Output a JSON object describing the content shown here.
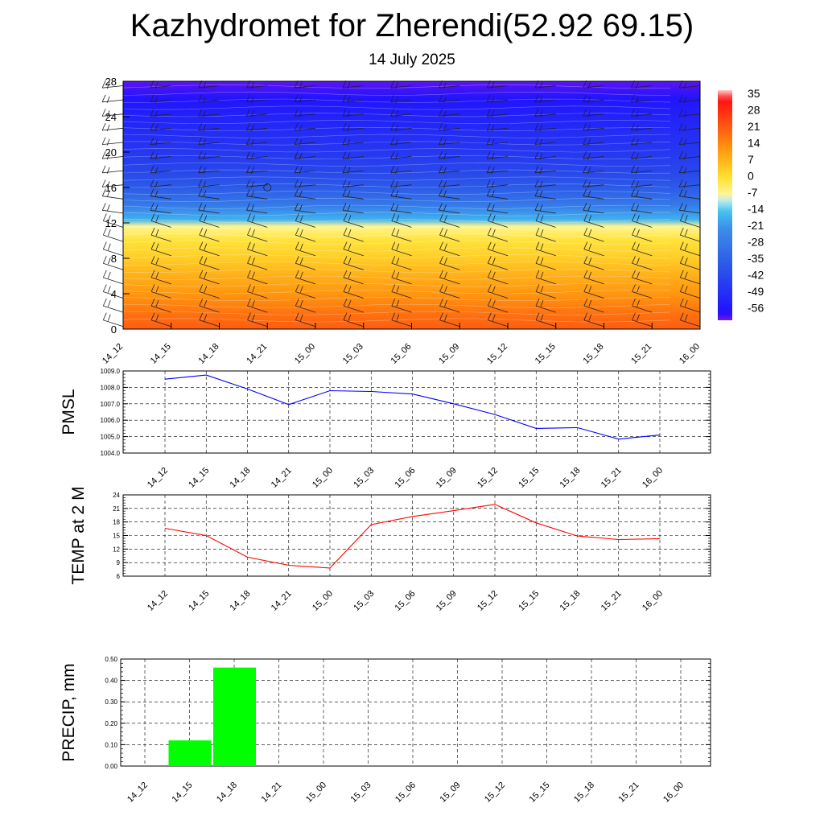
{
  "header": {
    "title": "Kazhydromet for Zherendi(52.92 69.15)",
    "date": "14 July 2025"
  },
  "colors": {
    "pmsl_line": "#0000ff",
    "temp_line": "#ff0000",
    "precip_bar": "#00ff00",
    "grid": "#000000"
  },
  "chart_data": [
    {
      "type": "heatmap",
      "description_source": "vertical profile",
      "x_ticks": [
        "14_12",
        "14_15",
        "14_18",
        "14_21",
        "15_00",
        "15_03",
        "15_06",
        "15_09",
        "15_12",
        "15_15",
        "15_18",
        "15_21",
        "16_00"
      ],
      "y_ticks": [
        "0",
        "4",
        "8",
        "12",
        "16",
        "20",
        "24",
        "28"
      ],
      "ylim": [
        0,
        28
      ],
      "colorbar_labels": [
        "35",
        "28",
        "21",
        "14",
        "7",
        "0",
        "-7",
        "-14",
        "-21",
        "-28",
        "-35",
        "-42",
        "-49",
        "-56"
      ],
      "colorbar_range": [
        -60,
        38
      ],
      "color_stops": [
        {
          "t": 0.0,
          "c": "#7b16e6"
        },
        {
          "t": 0.03,
          "c": "#2010ff"
        },
        {
          "t": 0.22,
          "c": "#2a52e8"
        },
        {
          "t": 0.4,
          "c": "#3c8fe8"
        },
        {
          "t": 0.47,
          "c": "#40c0f0"
        },
        {
          "t": 0.52,
          "c": "#b8ecf8"
        },
        {
          "t": 0.54,
          "c": "#fff8a0"
        },
        {
          "t": 0.62,
          "c": "#ffe030"
        },
        {
          "t": 0.74,
          "c": "#ff9a10"
        },
        {
          "t": 0.88,
          "c": "#ff4010"
        },
        {
          "t": 0.96,
          "c": "#ff1010"
        },
        {
          "t": 0.985,
          "c": "#ff8080"
        },
        {
          "t": 1.0,
          "c": "#ffd0d0"
        }
      ],
      "profile_levels": [
        0,
        2,
        4,
        6,
        8,
        10,
        11.6,
        12.4,
        14,
        16,
        18,
        20,
        22,
        24,
        26,
        28
      ],
      "profile_values": [
        22,
        18,
        13,
        9,
        4,
        0,
        -6,
        -16,
        -27,
        -36,
        -42,
        -46,
        -49,
        -52,
        -56,
        -59
      ],
      "circle_marker": {
        "x": "14_21",
        "y": 16
      }
    },
    {
      "type": "line",
      "ylabel": "PMSL",
      "x_ticks": [
        "14_12",
        "14_15",
        "14_18",
        "14_21",
        "15_00",
        "15_03",
        "15_06",
        "15_09",
        "15_12",
        "15_15",
        "15_18",
        "15_21",
        "16_00"
      ],
      "y_ticks": [
        "1004.0",
        "1005.0",
        "1006.0",
        "1007.0",
        "1008.0",
        "1009.0"
      ],
      "ylim": [
        1004,
        1009
      ],
      "series": [
        {
          "values": [
            1008.5,
            1008.75,
            1007.9,
            1006.95,
            1007.8,
            1007.75,
            1007.6,
            1007.0,
            1006.35,
            1005.5,
            1005.55,
            1004.85,
            1005.1
          ]
        }
      ]
    },
    {
      "type": "line",
      "ylabel": "TEMP at 2 M",
      "x_ticks": [
        "14_12",
        "14_15",
        "14_18",
        "14_21",
        "15_00",
        "15_03",
        "15_06",
        "15_09",
        "15_12",
        "15_15",
        "15_18",
        "15_21",
        "16_00"
      ],
      "y_ticks": [
        "6",
        "9",
        "12",
        "15",
        "18",
        "21",
        "24"
      ],
      "ylim": [
        6,
        24
      ],
      "series": [
        {
          "values": [
            16.6,
            15.0,
            10.2,
            8.4,
            7.8,
            17.4,
            19.2,
            20.5,
            21.9,
            17.8,
            14.9,
            14.1,
            14.3
          ]
        }
      ]
    },
    {
      "type": "bar",
      "ylabel": "PRECIP, mm",
      "x_ticks": [
        "14_12",
        "14_15",
        "14_18",
        "14_21",
        "15_00",
        "15_03",
        "15_06",
        "15_09",
        "15_12",
        "15_15",
        "15_18",
        "15_21",
        "16_00"
      ],
      "y_ticks": [
        "0.00",
        "0.10",
        "0.20",
        "0.30",
        "0.40",
        "0.50"
      ],
      "ylim": [
        0,
        0.5
      ],
      "values": [
        0,
        0.12,
        0.46,
        0,
        0,
        0,
        0,
        0,
        0,
        0,
        0,
        0,
        0
      ]
    }
  ]
}
